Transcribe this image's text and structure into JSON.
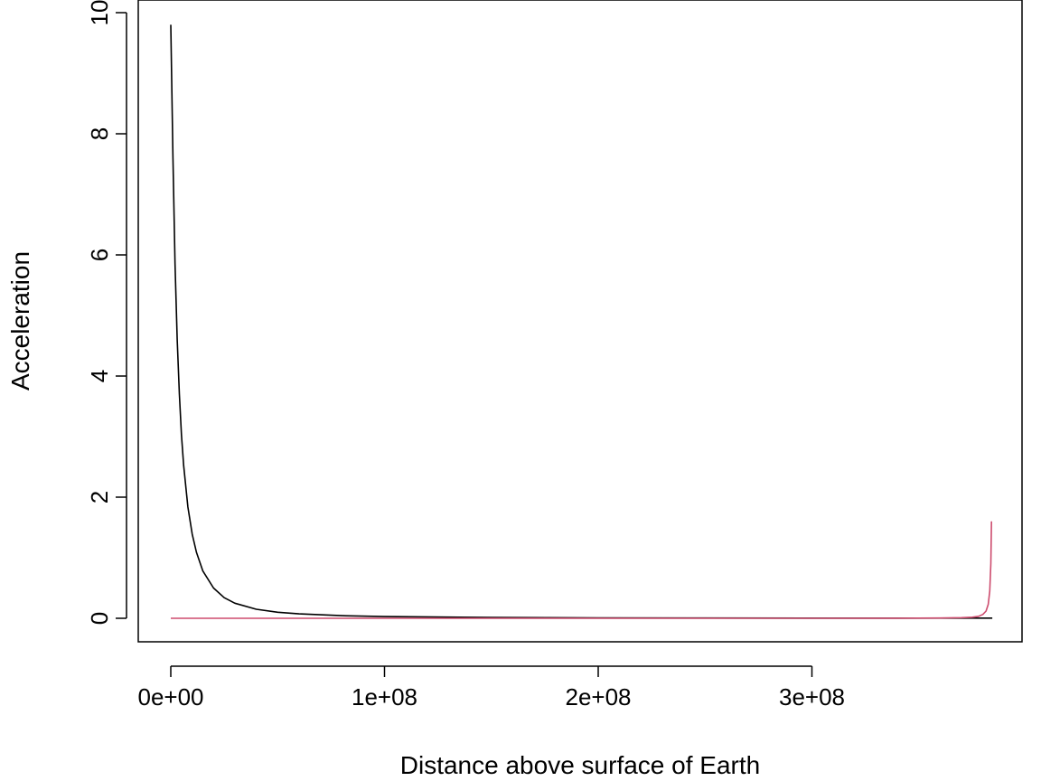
{
  "chart_data": {
    "type": "line",
    "title": "",
    "xlabel": "Distance above surface of Earth",
    "ylabel": "Acceleration",
    "xlim": [
      0,
      384400000
    ],
    "ylim": [
      0,
      10
    ],
    "grid": false,
    "legend": "none",
    "x_ticks": [
      0,
      100000000,
      200000000,
      300000000
    ],
    "x_tick_labels": [
      "0e+00",
      "1e+08",
      "2e+08",
      "3e+08"
    ],
    "y_ticks": [
      0,
      2,
      4,
      6,
      8,
      10
    ],
    "y_tick_labels": [
      "0",
      "2",
      "4",
      "6",
      "8",
      "10"
    ],
    "series": [
      {
        "color": "#000000",
        "x": [
          0,
          1000000,
          2000000,
          3000000,
          4000000,
          5000000,
          6000000,
          8000000,
          10000000,
          12000000,
          15000000,
          20000000,
          25000000,
          30000000,
          40000000,
          50000000,
          60000000,
          80000000,
          100000000,
          150000000,
          200000000,
          250000000,
          300000000,
          350000000,
          384400000
        ],
        "y": [
          9.8,
          7.6,
          5.85,
          4.6,
          3.7,
          3.03,
          2.53,
          1.84,
          1.39,
          1.09,
          0.78,
          0.5,
          0.34,
          0.25,
          0.15,
          0.1,
          0.073,
          0.043,
          0.028,
          0.013,
          0.0077,
          0.005,
          0.0036,
          0.0027,
          0.0027
        ]
      },
      {
        "color": "#cd4c6e",
        "x": [
          0,
          100000000,
          200000000,
          300000000,
          340000000,
          360000000,
          370000000,
          375000000,
          378000000,
          380000000,
          381500000,
          382500000,
          383200000,
          383700000,
          384000000
        ],
        "y": [
          0,
          0.0001,
          0.0001,
          0.0002,
          0.0019,
          0.0044,
          0.01,
          0.018,
          0.033,
          0.064,
          0.12,
          0.23,
          0.45,
          0.9,
          1.6
        ]
      }
    ]
  }
}
